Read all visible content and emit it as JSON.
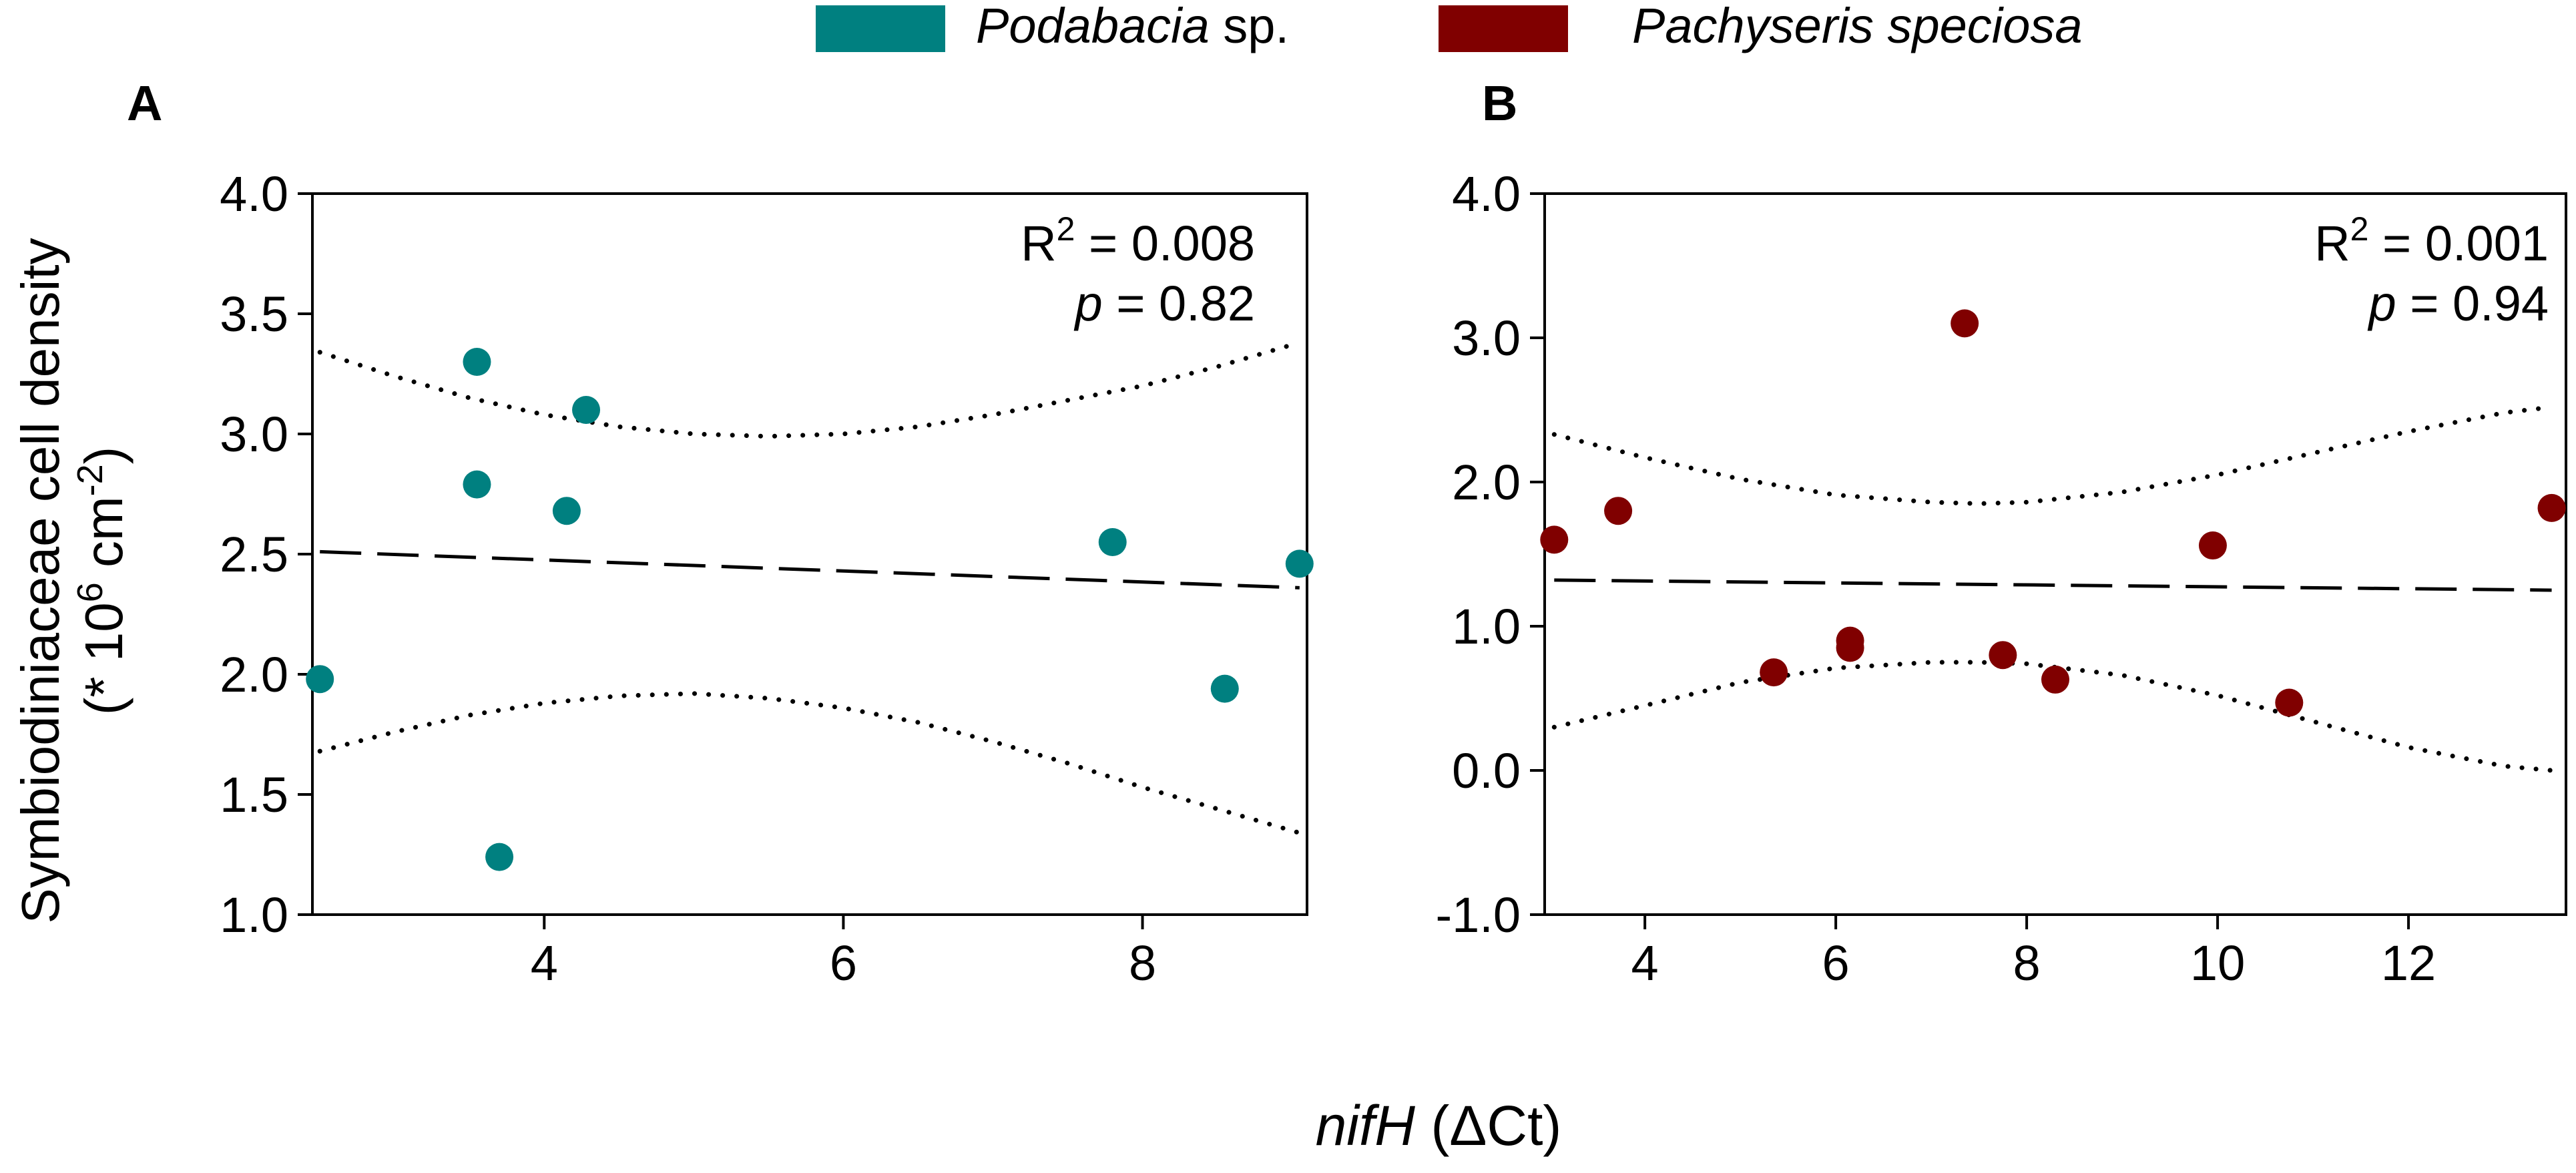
{
  "legend": [
    {
      "name": "Podabacia",
      "suffix": " sp.",
      "color": "#008080"
    },
    {
      "name": "Pachyseris speciosa",
      "suffix": "",
      "color": "#800000"
    }
  ],
  "y_axis_title": {
    "line1": "Symbiodiniaceae cell density",
    "line2_prefix": "(* 10",
    "line2_exp1": "6",
    "line2_mid": " cm",
    "line2_exp2": "-2",
    "line2_end": ")"
  },
  "x_axis_title": {
    "italic": "nifH",
    "rest": " (ΔCt)"
  },
  "chart_data": [
    {
      "type": "scatter",
      "panel_label": "A",
      "series_name": "Podabacia sp.",
      "color": "#008080",
      "xlim": [
        2.45,
        9.1
      ],
      "ylim": [
        1.0,
        4.0
      ],
      "x_ticks": [
        4,
        6,
        8
      ],
      "y_ticks": [
        1.0,
        1.5,
        2.0,
        2.5,
        3.0,
        3.5,
        4.0
      ],
      "y_tick_labels": [
        "1.0",
        "1.5",
        "2.0",
        "2.5",
        "3.0",
        "3.5",
        "4.0"
      ],
      "points": [
        {
          "x": 2.5,
          "y": 1.98
        },
        {
          "x": 3.55,
          "y": 3.3
        },
        {
          "x": 3.55,
          "y": 2.79
        },
        {
          "x": 3.7,
          "y": 1.24
        },
        {
          "x": 4.15,
          "y": 2.68
        },
        {
          "x": 4.28,
          "y": 3.1
        },
        {
          "x": 7.8,
          "y": 2.55
        },
        {
          "x": 8.55,
          "y": 1.94
        },
        {
          "x": 9.05,
          "y": 2.46
        }
      ],
      "fit_line": {
        "x": [
          2.5,
          9.05
        ],
        "y": [
          2.51,
          2.36
        ]
      },
      "upper_ci": {
        "x": [
          2.5,
          3.0,
          3.5,
          4.0,
          4.5,
          5.0,
          5.5,
          6.0,
          6.5,
          7.0,
          7.5,
          8.0,
          8.5,
          9.05
        ],
        "y": [
          3.34,
          3.24,
          3.15,
          3.08,
          3.03,
          3.0,
          2.99,
          3.0,
          3.03,
          3.08,
          3.14,
          3.2,
          3.28,
          3.38
        ]
      },
      "lower_ci": {
        "x": [
          2.5,
          3.0,
          3.5,
          4.0,
          4.5,
          5.0,
          5.5,
          6.0,
          6.5,
          7.0,
          7.5,
          8.0,
          8.5,
          9.05
        ],
        "y": [
          1.68,
          1.76,
          1.83,
          1.88,
          1.91,
          1.92,
          1.9,
          1.86,
          1.8,
          1.72,
          1.63,
          1.53,
          1.44,
          1.34
        ]
      },
      "annotation": {
        "r2_prefix": "R",
        "r2_exp": "2",
        "r2_value": " = 0.008",
        "p_label": "p",
        "p_value": " = 0.82"
      }
    },
    {
      "type": "scatter",
      "panel_label": "B",
      "series_name": "Pachyseris speciosa",
      "color": "#800000",
      "xlim": [
        2.95,
        13.65
      ],
      "ylim": [
        -1.0,
        4.0
      ],
      "x_ticks": [
        4,
        6,
        8,
        10,
        12
      ],
      "y_ticks": [
        -1.0,
        0.0,
        1.0,
        2.0,
        3.0,
        4.0
      ],
      "y_tick_labels": [
        "-1.0",
        "0.0",
        "1.0",
        "2.0",
        "3.0",
        "4.0"
      ],
      "points": [
        {
          "x": 3.05,
          "y": 1.6
        },
        {
          "x": 3.72,
          "y": 1.8
        },
        {
          "x": 5.35,
          "y": 0.68
        },
        {
          "x": 6.15,
          "y": 0.9
        },
        {
          "x": 6.15,
          "y": 0.85
        },
        {
          "x": 7.35,
          "y": 3.1
        },
        {
          "x": 7.75,
          "y": 0.8
        },
        {
          "x": 8.3,
          "y": 0.63
        },
        {
          "x": 9.95,
          "y": 1.56
        },
        {
          "x": 10.75,
          "y": 0.47
        },
        {
          "x": 13.5,
          "y": 1.82
        }
      ],
      "fit_line": {
        "x": [
          3.05,
          13.5
        ],
        "y": [
          1.32,
          1.25
        ]
      },
      "upper_ci": {
        "x": [
          3.05,
          4.0,
          5.0,
          6.0,
          7.0,
          7.5,
          8.0,
          9.0,
          10.0,
          11.0,
          12.0,
          13.0,
          13.5
        ],
        "y": [
          2.33,
          2.17,
          2.02,
          1.91,
          1.86,
          1.85,
          1.86,
          1.93,
          2.05,
          2.2,
          2.35,
          2.48,
          2.52
        ]
      },
      "lower_ci": {
        "x": [
          3.05,
          4.0,
          5.0,
          6.0,
          7.0,
          7.5,
          8.0,
          9.0,
          10.0,
          11.0,
          12.0,
          13.0,
          13.5
        ],
        "y": [
          0.3,
          0.45,
          0.61,
          0.71,
          0.75,
          0.75,
          0.74,
          0.66,
          0.52,
          0.34,
          0.16,
          0.03,
          0.0
        ]
      },
      "annotation": {
        "r2_prefix": "R",
        "r2_exp": "2",
        "r2_value": " = 0.001",
        "p_label": "p",
        "p_value": " = 0.94"
      }
    }
  ]
}
